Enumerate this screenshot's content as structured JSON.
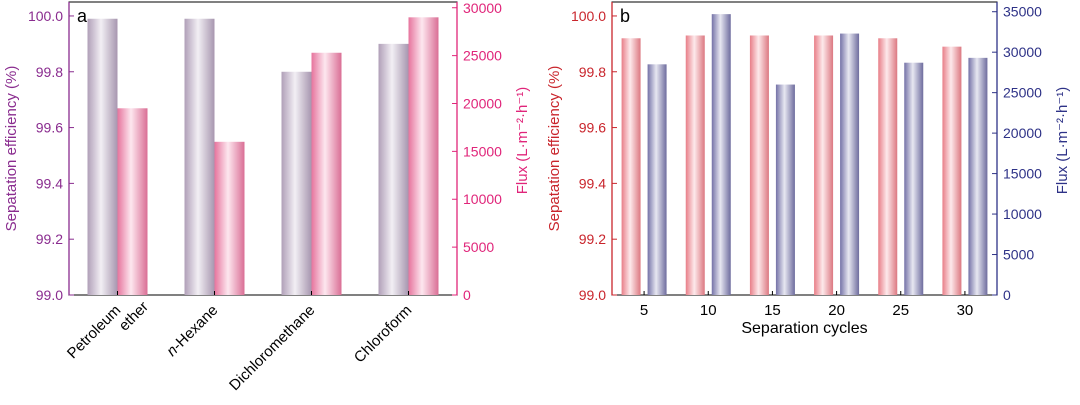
{
  "chart_data": [
    {
      "panel": "a",
      "type": "bar",
      "categories": [
        "Petroleum\nether",
        "n-Hexane",
        "Dichloromethane",
        "Chloroform"
      ],
      "category_italic_prefix": [
        "",
        "n",
        "",
        ""
      ],
      "series": [
        {
          "axis": "left",
          "values": [
            99.99,
            99.99,
            99.8,
            99.9
          ],
          "color": "#b9a7c2"
        },
        {
          "axis": "right",
          "values": [
            19500,
            16000,
            25300,
            29000
          ],
          "color": "#f27aa5"
        }
      ],
      "ylabel_left": "Sepatation efficiency (%)",
      "ylabel_right": "Flux (L·m⁻²·h⁻¹)",
      "ylim_left": [
        99.0,
        100.05
      ],
      "ylim_right": [
        0,
        30600
      ],
      "yticks_left": [
        "99.0",
        "99.2",
        "99.4",
        "99.6",
        "99.8",
        "100.0"
      ],
      "yticks_right": [
        "0",
        "5000",
        "10000",
        "15000",
        "20000",
        "25000",
        "30000"
      ],
      "left_color": "#8a2c8f",
      "right_color": "#e0257a",
      "grid": false
    },
    {
      "panel": "b",
      "type": "bar",
      "categories": [
        "5",
        "10",
        "15",
        "20",
        "25",
        "30"
      ],
      "series": [
        {
          "axis": "left",
          "values": [
            99.92,
            99.93,
            99.93,
            99.93,
            99.92,
            99.89
          ],
          "color": "#f4858f"
        },
        {
          "axis": "right",
          "values": [
            28500,
            34700,
            26000,
            32300,
            28700,
            29300
          ],
          "color": "#7a78b0"
        }
      ],
      "xlabel": "Separation cycles",
      "ylabel_left": "Sepatation efficiency (%)",
      "ylabel_right": "Flux (L·m⁻²·h⁻¹)",
      "ylim_left": [
        99.0,
        100.05
      ],
      "ylim_right": [
        0,
        36200
      ],
      "yticks_left": [
        "99.0",
        "99.2",
        "99.4",
        "99.6",
        "99.8",
        "100.0"
      ],
      "yticks_right": [
        "0",
        "5000",
        "10000",
        "15000",
        "20000",
        "25000",
        "30000",
        "35000"
      ],
      "left_color": "#c9252c",
      "right_color": "#2e3287",
      "grid": false
    }
  ]
}
